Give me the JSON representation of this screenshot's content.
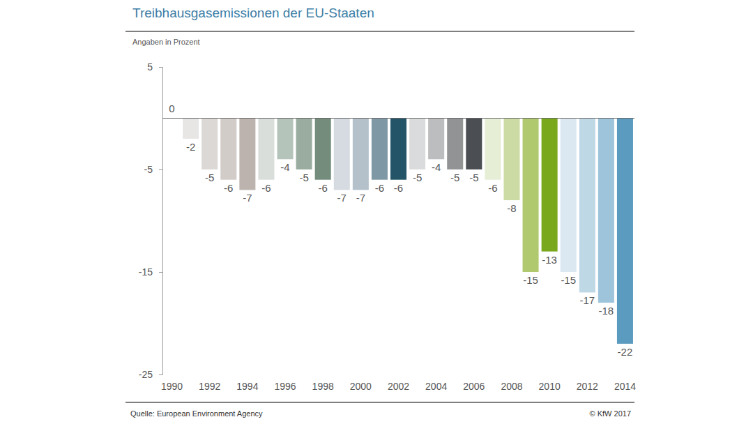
{
  "chart_data": {
    "type": "bar",
    "title": "Treibhausgasemissionen der EU-Staaten",
    "ylabel": "Angaben in Prozent",
    "annotations": [
      "Quelle: European Environment Agency",
      "© KfW 2017"
    ],
    "categories": [
      "1990",
      null,
      "1992",
      null,
      "1994",
      null,
      "1996",
      null,
      "1998",
      null,
      "2000",
      null,
      "2002",
      null,
      "2004",
      null,
      "2006",
      null,
      "2008",
      null,
      "2010",
      null,
      "2012",
      null,
      "2014"
    ],
    "values": [
      0,
      -2,
      -5,
      -6,
      -7,
      -6,
      -4,
      -5,
      -6,
      -7,
      -7,
      -6,
      -6,
      -5,
      -4,
      -5,
      -5,
      -6,
      -8,
      -15,
      -13,
      -15,
      -17,
      -18,
      -22
    ],
    "colors": [
      "#efeeed",
      "#e8e6e5",
      "#dcd8d6",
      "#d2ccc9",
      "#bdb3ae",
      "#d9dedb",
      "#b5c4bb",
      "#99ac9f",
      "#738c7c",
      "#d5dbe0",
      "#b4c1ca",
      "#7f98a5",
      "#235468",
      "#dadbdc",
      "#bcbdbe",
      "#919395",
      "#4b4f53",
      "#e6eed6",
      "#ccdba3",
      "#b0c96f",
      "#7aa81d",
      "#dbe8f1",
      "#bfd8e6",
      "#9ec4dc",
      "#5b9bbf"
    ],
    "ylim": [
      -25,
      5
    ],
    "yticks": [
      -25,
      -15,
      -5,
      5
    ],
    "grid": false,
    "data_labels": true
  }
}
